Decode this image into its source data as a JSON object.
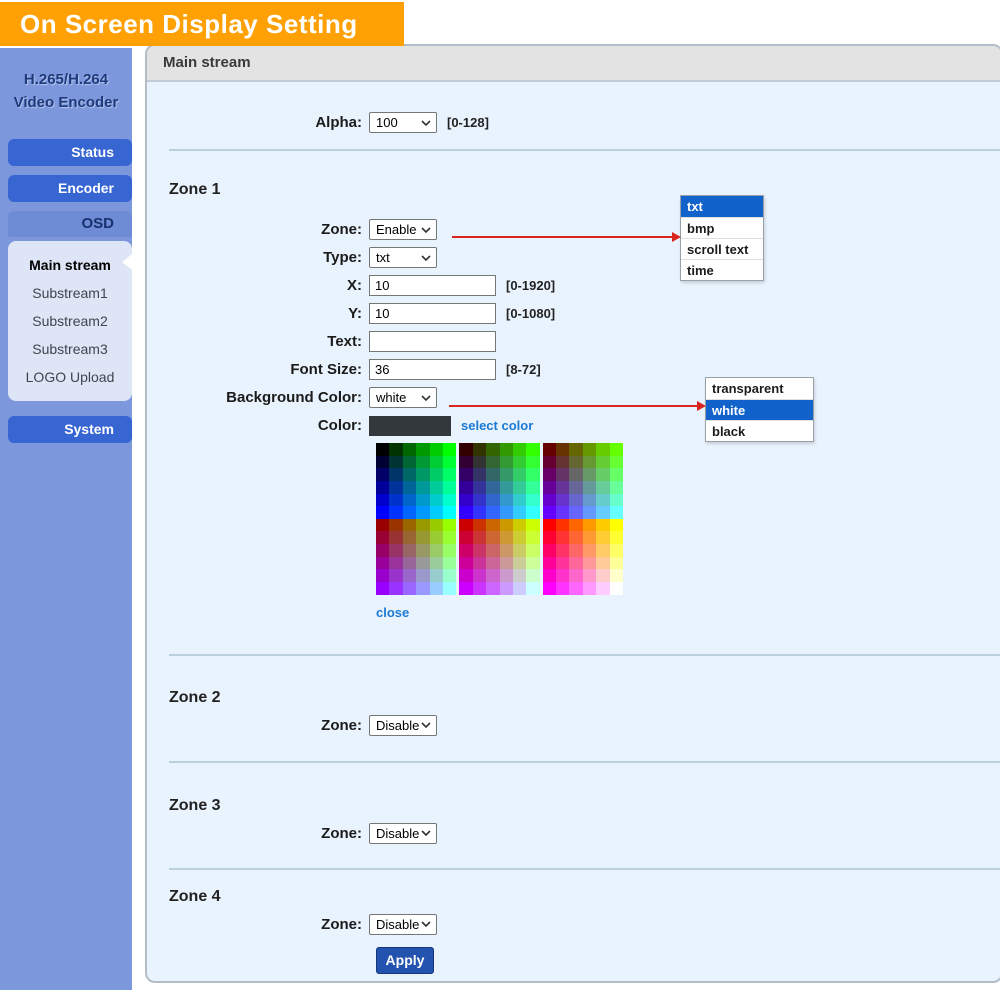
{
  "banner": {
    "title": "On Screen Display Setting"
  },
  "sidebar": {
    "device_title": [
      "H.265/H.264",
      "Video Encoder"
    ],
    "nav": [
      {
        "label": "Status"
      },
      {
        "label": "Encoder"
      }
    ],
    "osd_label": "OSD",
    "osd_submenu": [
      {
        "label": "Main stream",
        "active": true
      },
      {
        "label": "Substream1"
      },
      {
        "label": "Substream2"
      },
      {
        "label": "Substream3"
      },
      {
        "label": "LOGO Upload"
      }
    ],
    "system_label": "System"
  },
  "main": {
    "header_title": "Main stream",
    "alpha_row": {
      "label": "Alpha:",
      "value": "100",
      "hint": "[0-128]"
    },
    "zone1": {
      "heading": "Zone 1",
      "zone": {
        "label": "Zone:",
        "value": "Enable"
      },
      "type": {
        "label": "Type:",
        "value": "txt"
      },
      "x": {
        "label": "X:",
        "value": "10",
        "hint": "[0-1920]"
      },
      "y": {
        "label": "Y:",
        "value": "10",
        "hint": "[0-1080]"
      },
      "text": {
        "label": "Text:",
        "value": ""
      },
      "font_size": {
        "label": "Font Size:",
        "value": "36",
        "hint": "[8-72]"
      },
      "background_color": {
        "label": "Background Color:",
        "value": "white"
      },
      "color": {
        "label": "Color:",
        "current_color": "#33383c",
        "select_link": "select color",
        "close_link": "close"
      }
    },
    "zone2": {
      "heading": "Zone 2",
      "zone": {
        "label": "Zone:",
        "value": "Disable"
      }
    },
    "zone3": {
      "heading": "Zone 3",
      "zone": {
        "label": "Zone:",
        "value": "Disable"
      }
    },
    "zone4": {
      "heading": "Zone 4",
      "zone": {
        "label": "Zone:",
        "value": "Disable"
      }
    },
    "apply_label": "Apply"
  },
  "popups": {
    "type_options": {
      "items": [
        "txt",
        "bmp",
        "scroll text",
        "time"
      ],
      "highlighted": "txt"
    },
    "background_options": {
      "items": [
        "transparent",
        "white",
        "black"
      ],
      "highlighted": "white"
    }
  },
  "palette": {
    "scheme": "web-safe-216",
    "blocks": 3,
    "cols_per_block": 6,
    "rows": 12,
    "channel_levels": [
      0,
      51,
      102,
      153,
      204,
      255
    ]
  },
  "colors": {
    "banner_orange": "#ffa104",
    "sidebar_blue": "#7d97dc",
    "nav_button_blue": "#3765d2",
    "highlight_blue": "#1262cc",
    "arrow_red": "#d9251d",
    "link_blue": "#1b7ad4",
    "panel_bg": "#e9f3fd",
    "apply_blue": "#2353ae"
  }
}
